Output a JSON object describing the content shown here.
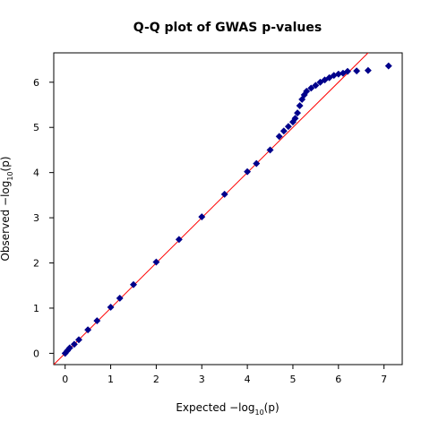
{
  "chart_data": {
    "type": "scatter",
    "title": "Q-Q plot of GWAS p-values",
    "xlabel": "Expected  −log",
    "xlabel_sub": "10",
    "xlabel_arg": "(p)",
    "ylabel": "Observed  −log",
    "ylabel_sub": "10",
    "ylabel_arg": "(p)",
    "xlim": [
      -0.25,
      7.4
    ],
    "ylim": [
      -0.25,
      6.65
    ],
    "x_ticks": [
      0,
      1,
      2,
      3,
      4,
      5,
      6,
      7
    ],
    "y_ticks": [
      0,
      1,
      2,
      3,
      4,
      5,
      6
    ],
    "grid": false,
    "colors": {
      "points": "#00008b",
      "reference_line": "#ff0000",
      "axis": "#000000"
    },
    "reference_line": {
      "slope": 1,
      "intercept": 0
    },
    "series": [
      {
        "x": [
          0.0,
          0.05,
          0.1,
          0.2,
          0.3,
          0.5,
          0.7,
          1.0,
          1.2,
          1.5,
          2.0,
          2.5,
          3.0,
          3.5,
          4.0,
          4.2,
          4.5,
          4.7,
          4.8,
          4.9,
          5.0,
          5.05,
          5.1,
          5.15,
          5.2,
          5.25,
          5.3,
          5.4,
          5.5,
          5.6,
          5.7,
          5.8,
          5.9,
          6.0,
          6.1,
          6.2,
          6.4,
          6.65,
          7.1
        ],
        "y": [
          0.0,
          0.06,
          0.12,
          0.2,
          0.3,
          0.52,
          0.72,
          1.02,
          1.22,
          1.52,
          2.02,
          2.52,
          3.02,
          3.52,
          4.02,
          4.2,
          4.5,
          4.8,
          4.92,
          5.02,
          5.12,
          5.2,
          5.32,
          5.48,
          5.62,
          5.72,
          5.8,
          5.87,
          5.93,
          6.0,
          6.05,
          6.1,
          6.15,
          6.18,
          6.2,
          6.24,
          6.25,
          6.26,
          6.36
        ]
      }
    ]
  }
}
